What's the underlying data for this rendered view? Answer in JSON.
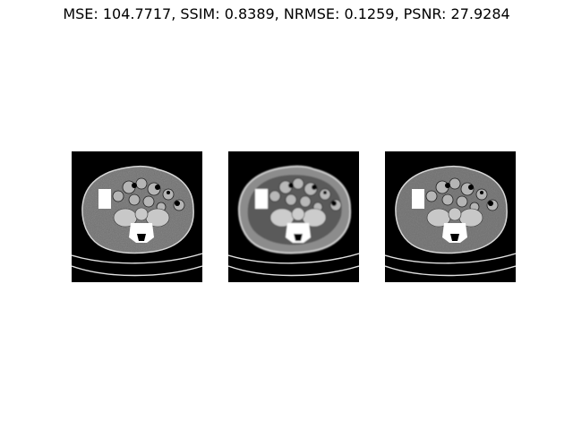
{
  "figure": {
    "title": "MSE: 104.7717, SSIM: 0.8389, NRMSE: 0.1259, PSNR: 27.9284"
  },
  "panels": [
    {
      "content": "ct-slice-noisy"
    },
    {
      "content": "ct-slice-smoothed"
    },
    {
      "content": "ct-slice-reference"
    }
  ]
}
